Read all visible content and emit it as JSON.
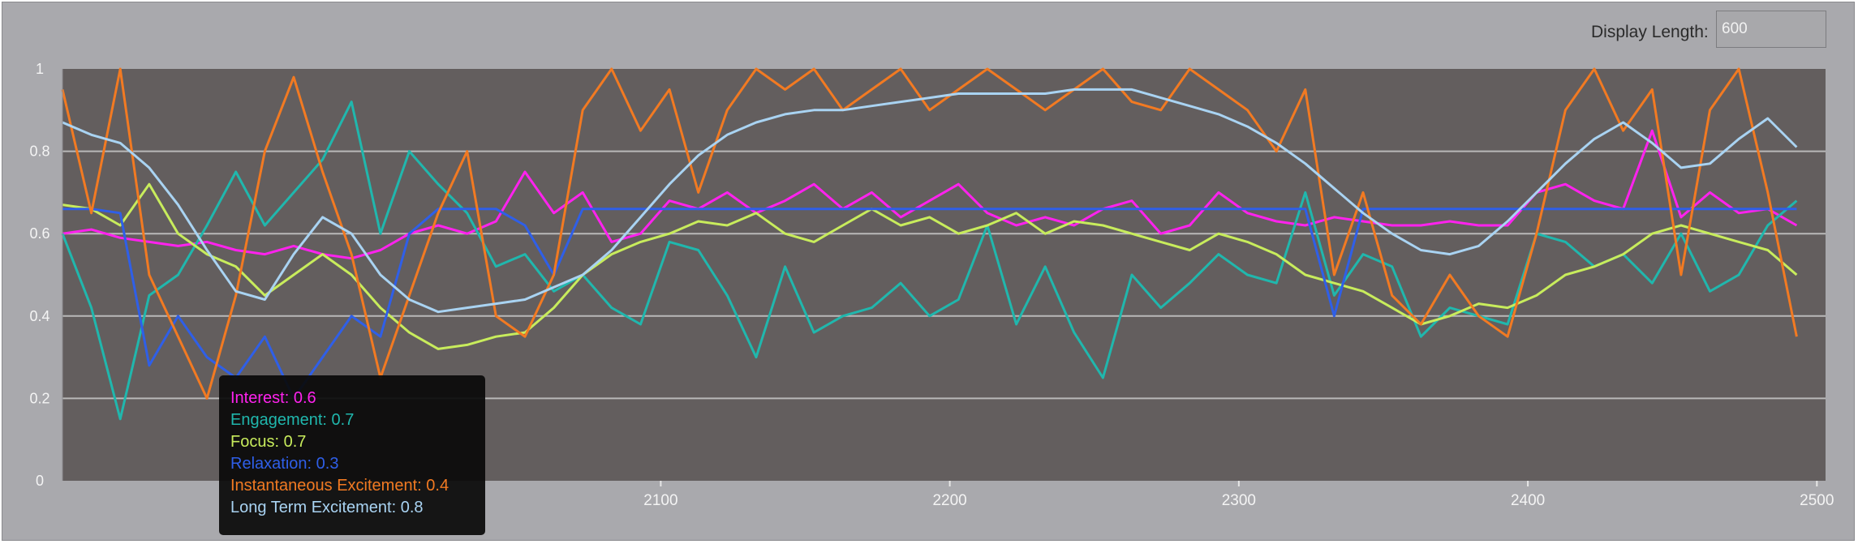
{
  "controls": {
    "display_length_label": "Display Length:",
    "display_length_value": "600"
  },
  "colors": {
    "plot_background": "#635e5e",
    "gridline": "#b9b9b9",
    "interest": "#ff22ee",
    "engagement": "#20b7ad",
    "focus": "#c8ec5c",
    "relaxation": "#2f5fe8",
    "instantaneous_excitement": "#f27a22",
    "long_term_excitement": "#a9d3f2"
  },
  "chart_data": {
    "type": "line",
    "title": "",
    "xlabel": "",
    "ylabel": "",
    "xlim": [
      1893,
      2503
    ],
    "ylim": [
      0,
      1
    ],
    "x_ticks": [
      2100,
      2200,
      2300,
      2400,
      2500
    ],
    "y_ticks": [
      0,
      0.2,
      0.4,
      0.6,
      0.8,
      1
    ],
    "y_tick_labels": [
      "0",
      "0.2",
      "0.4",
      "0.6",
      "0.8",
      "1"
    ],
    "grid": true,
    "x_step": 10,
    "series": [
      {
        "name": "Interest",
        "color_key": "interest",
        "values": [
          0.6,
          0.61,
          0.59,
          0.58,
          0.57,
          0.58,
          0.56,
          0.55,
          0.57,
          0.55,
          0.54,
          0.56,
          0.6,
          0.62,
          0.6,
          0.63,
          0.75,
          0.65,
          0.7,
          0.58,
          0.6,
          0.68,
          0.66,
          0.7,
          0.65,
          0.68,
          0.72,
          0.66,
          0.7,
          0.64,
          0.68,
          0.72,
          0.65,
          0.62,
          0.64,
          0.62,
          0.66,
          0.68,
          0.6,
          0.62,
          0.7,
          0.65,
          0.63,
          0.62,
          0.64,
          0.63,
          0.62,
          0.62,
          0.63,
          0.62,
          0.62,
          0.7,
          0.72,
          0.68,
          0.66,
          0.85,
          0.64,
          0.7,
          0.65,
          0.66,
          0.62
        ]
      },
      {
        "name": "Engagement",
        "color_key": "engagement",
        "values": [
          0.6,
          0.42,
          0.15,
          0.45,
          0.5,
          0.62,
          0.75,
          0.62,
          0.7,
          0.78,
          0.92,
          0.6,
          0.8,
          0.72,
          0.65,
          0.52,
          0.55,
          0.46,
          0.5,
          0.42,
          0.38,
          0.58,
          0.56,
          0.45,
          0.3,
          0.52,
          0.36,
          0.4,
          0.42,
          0.48,
          0.4,
          0.44,
          0.62,
          0.38,
          0.52,
          0.36,
          0.25,
          0.5,
          0.42,
          0.48,
          0.55,
          0.5,
          0.48,
          0.7,
          0.45,
          0.55,
          0.52,
          0.35,
          0.42,
          0.4,
          0.38,
          0.6,
          0.58,
          0.52,
          0.55,
          0.48,
          0.6,
          0.46,
          0.5,
          0.62,
          0.68
        ]
      },
      {
        "name": "Focus",
        "color_key": "focus",
        "values": [
          0.67,
          0.66,
          0.62,
          0.72,
          0.6,
          0.55,
          0.52,
          0.45,
          0.5,
          0.55,
          0.5,
          0.42,
          0.36,
          0.32,
          0.33,
          0.35,
          0.36,
          0.42,
          0.5,
          0.55,
          0.58,
          0.6,
          0.63,
          0.62,
          0.65,
          0.6,
          0.58,
          0.62,
          0.66,
          0.62,
          0.64,
          0.6,
          0.62,
          0.65,
          0.6,
          0.63,
          0.62,
          0.6,
          0.58,
          0.56,
          0.6,
          0.58,
          0.55,
          0.5,
          0.48,
          0.46,
          0.42,
          0.38,
          0.4,
          0.43,
          0.42,
          0.45,
          0.5,
          0.52,
          0.55,
          0.6,
          0.62,
          0.6,
          0.58,
          0.56,
          0.5
        ]
      },
      {
        "name": "Relaxation",
        "color_key": "relaxation",
        "values": [
          0.66,
          0.66,
          0.65,
          0.28,
          0.4,
          0.3,
          0.25,
          0.35,
          0.2,
          0.3,
          0.4,
          0.35,
          0.6,
          0.66,
          0.66,
          0.66,
          0.62,
          0.5,
          0.66,
          0.66,
          0.66,
          0.66,
          0.66,
          0.66,
          0.66,
          0.66,
          0.66,
          0.66,
          0.66,
          0.66,
          0.66,
          0.66,
          0.66,
          0.66,
          0.66,
          0.66,
          0.66,
          0.66,
          0.66,
          0.66,
          0.66,
          0.66,
          0.66,
          0.66,
          0.4,
          0.66,
          0.66,
          0.66,
          0.66,
          0.66,
          0.66,
          0.66,
          0.66,
          0.66,
          0.66,
          0.66,
          0.66,
          0.66,
          0.66,
          0.66,
          0.66
        ]
      },
      {
        "name": "Instantaneous Excitement",
        "color_key": "instantaneous_excitement",
        "values": [
          0.95,
          0.65,
          1,
          0.5,
          0.35,
          0.2,
          0.45,
          0.8,
          0.98,
          0.75,
          0.55,
          0.25,
          0.45,
          0.65,
          0.8,
          0.4,
          0.35,
          0.5,
          0.9,
          1,
          0.85,
          0.95,
          0.7,
          0.9,
          1,
          0.95,
          1,
          0.9,
          0.95,
          1,
          0.9,
          0.95,
          1,
          0.95,
          0.9,
          0.95,
          1,
          0.92,
          0.9,
          1,
          0.95,
          0.9,
          0.8,
          0.95,
          0.5,
          0.7,
          0.45,
          0.38,
          0.5,
          0.4,
          0.35,
          0.6,
          0.9,
          1,
          0.85,
          0.95,
          0.5,
          0.9,
          1,
          0.7,
          0.35
        ]
      },
      {
        "name": "Long Term Excitement",
        "color_key": "long_term_excitement",
        "values": [
          0.87,
          0.84,
          0.82,
          0.76,
          0.67,
          0.56,
          0.46,
          0.44,
          0.55,
          0.64,
          0.6,
          0.5,
          0.44,
          0.41,
          0.42,
          0.43,
          0.44,
          0.47,
          0.5,
          0.56,
          0.64,
          0.72,
          0.79,
          0.84,
          0.87,
          0.89,
          0.9,
          0.9,
          0.91,
          0.92,
          0.93,
          0.94,
          0.94,
          0.94,
          0.94,
          0.95,
          0.95,
          0.95,
          0.93,
          0.91,
          0.89,
          0.86,
          0.82,
          0.77,
          0.71,
          0.65,
          0.6,
          0.56,
          0.55,
          0.57,
          0.63,
          0.7,
          0.77,
          0.83,
          0.87,
          0.82,
          0.76,
          0.77,
          0.83,
          0.88,
          0.81
        ]
      }
    ]
  },
  "tooltip": {
    "rows": [
      {
        "label": "Interest",
        "value": "0.6",
        "color_key": "interest"
      },
      {
        "label": "Engagement",
        "value": "0.7",
        "color_key": "engagement"
      },
      {
        "label": "Focus",
        "value": "0.7",
        "color_key": "focus"
      },
      {
        "label": "Relaxation",
        "value": "0.3",
        "color_key": "relaxation"
      },
      {
        "label": "Instantaneous Excitement",
        "value": "0.4",
        "color_key": "instantaneous_excitement"
      },
      {
        "label": "Long Term Excitement",
        "value": "0.8",
        "color_key": "long_term_excitement"
      }
    ]
  }
}
